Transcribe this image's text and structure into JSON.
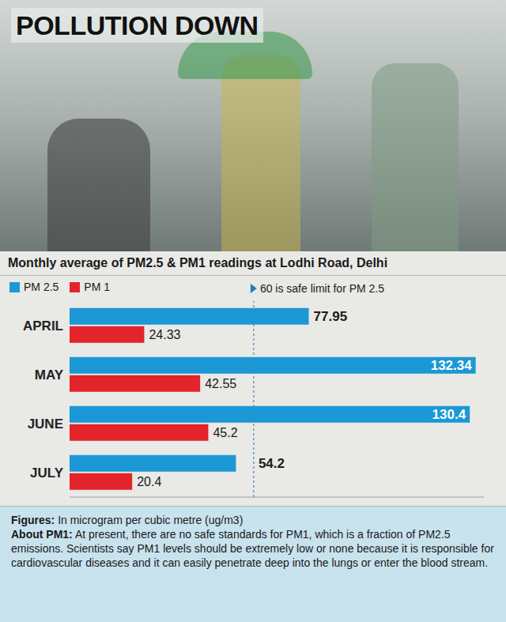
{
  "header": {
    "title": "POLLUTION DOWN"
  },
  "chart_data": {
    "type": "bar",
    "orientation": "horizontal",
    "title": "Monthly average of PM2.5 & PM1 readings at Lodhi Road, Delhi",
    "categories": [
      "APRIL",
      "MAY",
      "JUNE",
      "JULY"
    ],
    "series": [
      {
        "name": "PM 2.5",
        "color": "#1b98d5",
        "values": [
          77.95,
          132.34,
          130.4,
          54.2
        ]
      },
      {
        "name": "PM 1",
        "color": "#e3242b",
        "values": [
          24.33,
          42.55,
          45.2,
          20.4
        ]
      }
    ],
    "xlim": [
      0,
      135
    ],
    "xticks": [],
    "tick_labels": "y",
    "grid": false,
    "data_labels": true,
    "legend": "top left",
    "reference_line": {
      "value": 60,
      "label": "60 is safe limit for PM 2.5"
    }
  },
  "footer": {
    "figures_label": "Figures:",
    "figures_text": "In microgram per cubic metre (ug/m3)",
    "about_label": "About PM1:",
    "about_text": "At present, there are no safe standards for PM1, which is a fraction of PM2.5 emissions. Scientists say PM1 levels should be extremely low or none because it is responsible for cardiovascular diseases and it can easily penetrate deep into the lungs or enter the blood stream."
  }
}
